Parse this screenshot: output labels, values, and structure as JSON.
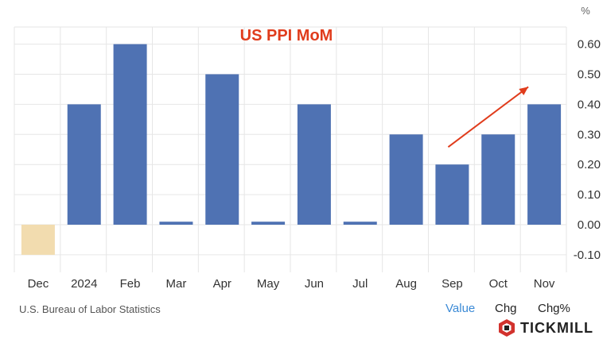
{
  "chart_data": {
    "type": "bar",
    "title": "US PPI MoM",
    "unit_label": "%",
    "categories": [
      "Dec",
      "2024",
      "Feb",
      "Mar",
      "Apr",
      "May",
      "Jun",
      "Jul",
      "Aug",
      "Sep",
      "Oct",
      "Nov"
    ],
    "values": [
      -0.1,
      0.4,
      0.6,
      0.01,
      0.5,
      0.01,
      0.4,
      0.01,
      0.3,
      0.2,
      0.3,
      0.4
    ],
    "highlight_categories": [
      "Dec"
    ],
    "ylim": [
      -0.15,
      0.65
    ],
    "yticks": [
      "0.60",
      "0.50",
      "0.40",
      "0.30",
      "0.20",
      "0.10",
      "0.00",
      "-0.10"
    ],
    "ytick_values": [
      0.6,
      0.5,
      0.4,
      0.3,
      0.2,
      0.1,
      0.0,
      -0.1
    ],
    "y_axis_side": "right",
    "grid": true,
    "annotation": {
      "type": "trend-arrow",
      "from_category": "Sep",
      "to_category": "Nov",
      "color": "#e03c1c"
    },
    "colors": {
      "bar": "#4f72b3",
      "highlight_bar": "#f2dcaf",
      "title": "#e03c1c",
      "grid": "#e6e6e6"
    }
  },
  "source": "U.S. Bureau of Labor Statistics",
  "mode_tabs": [
    {
      "label": "Value",
      "active": true
    },
    {
      "label": "Chg",
      "active": false
    },
    {
      "label": "Chg%",
      "active": false
    }
  ],
  "brand": {
    "name": "TICKMILL",
    "icon": "tickmill-logo-icon"
  }
}
